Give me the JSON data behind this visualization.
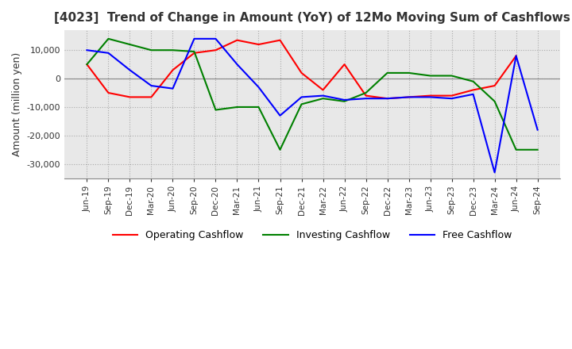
{
  "title": "[4023]  Trend of Change in Amount (YoY) of 12Mo Moving Sum of Cashflows",
  "ylabel": "Amount (million yen)",
  "legend_labels": [
    "Operating Cashflow",
    "Investing Cashflow",
    "Free Cashflow"
  ],
  "colors": [
    "red",
    "green",
    "blue"
  ],
  "x_labels": [
    "Jun-19",
    "Sep-19",
    "Dec-19",
    "Mar-20",
    "Jun-20",
    "Sep-20",
    "Dec-20",
    "Mar-21",
    "Jun-21",
    "Sep-21",
    "Dec-21",
    "Mar-22",
    "Jun-22",
    "Sep-22",
    "Dec-22",
    "Mar-23",
    "Jun-23",
    "Sep-23",
    "Dec-23",
    "Mar-24",
    "Jun-24",
    "Sep-24"
  ],
  "operating": [
    5000,
    -5000,
    -6500,
    -6500,
    3000,
    9000,
    10000,
    13500,
    12000,
    13500,
    2000,
    -4000,
    5000,
    -6000,
    -7000,
    -6500,
    -6000,
    -6000,
    -4000,
    -2500,
    8000,
    null
  ],
  "investing": [
    5000,
    14000,
    12000,
    10000,
    10000,
    9500,
    -11000,
    -10000,
    -10000,
    -25000,
    -9000,
    -7000,
    -8000,
    -5000,
    2000,
    2000,
    1000,
    1000,
    -1000,
    -8000,
    -25000,
    -25000
  ],
  "free": [
    10000,
    9000,
    3000,
    -2500,
    -3500,
    14000,
    14000,
    5000,
    -3000,
    -13000,
    -6500,
    -6000,
    -7500,
    -7000,
    -7000,
    -6500,
    -6500,
    -7000,
    -5500,
    -33000,
    8000,
    -18000
  ],
  "ylim": [
    -35000,
    17000
  ],
  "yticks": [
    -30000,
    -20000,
    -10000,
    0,
    10000
  ],
  "background_color": "#e8e8e8",
  "grid_color": "#aaaaaa",
  "title_color": "#333333"
}
